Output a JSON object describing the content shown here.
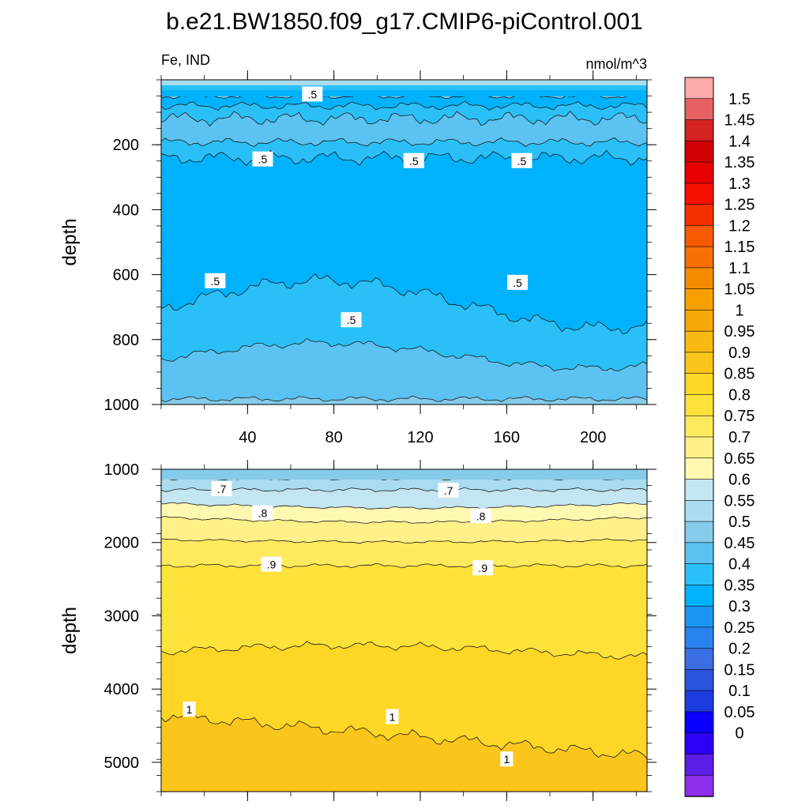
{
  "title": "b.e21.BW1850.f09_g17.CMIP6-piControl.001",
  "left_string": "Fe, IND",
  "right_string": "nmol/m^3",
  "colors": {
    "bands": [
      "#8e2eea",
      "#5a1ee6",
      "#2d00f5",
      "#0a00ff",
      "#1d3ce0",
      "#2a54dc",
      "#3a6ee2",
      "#2a82ee",
      "#1a96f2",
      "#00b2fb",
      "#2ac0f7",
      "#5cc2f1",
      "#86cbea",
      "#aadcef",
      "#c4e5f2",
      "#fff8b0",
      "#fff08a",
      "#ffea5e",
      "#fde23a",
      "#fdd626",
      "#fbc61c",
      "#f9b812",
      "#f7a80a",
      "#f7a000",
      "#f68a00",
      "#f77006",
      "#f55a00",
      "#f53000",
      "#f51000",
      "#e80000",
      "#d00000",
      "#d42222",
      "#e66262",
      "#fcaaaa"
    ]
  },
  "chart_data": [
    {
      "type": "contour",
      "panel": "upper",
      "ylabel": "depth",
      "xlim": [
        0,
        225
      ],
      "ylim": [
        1000,
        0
      ],
      "x_ticks": [
        40,
        80,
        120,
        160,
        200
      ],
      "y_ticks": [
        200,
        400,
        600,
        800,
        1000
      ],
      "contour_labels": [
        {
          "text": ".5",
          "x": 70,
          "y": 45
        },
        {
          "text": ".5",
          "x": 47,
          "y": 245
        },
        {
          "text": ".5",
          "x": 117,
          "y": 250
        },
        {
          "text": ".5",
          "x": 167,
          "y": 250
        },
        {
          "text": ".5",
          "x": 25,
          "y": 620
        },
        {
          "text": ".5",
          "x": 88,
          "y": 740
        },
        {
          "text": ".5",
          "x": 165,
          "y": 625
        }
      ]
    },
    {
      "type": "contour",
      "panel": "lower",
      "ylabel": "depth",
      "xlim": [
        0,
        225
      ],
      "ylim": [
        5400,
        1000
      ],
      "y_ticks": [
        1000,
        2000,
        3000,
        4000,
        5000
      ],
      "contour_labels": [
        {
          "text": ".7",
          "x": 28,
          "y": 1270
        },
        {
          "text": ".7",
          "x": 133,
          "y": 1290
        },
        {
          "text": ".8",
          "x": 47,
          "y": 1600
        },
        {
          "text": ".8",
          "x": 148,
          "y": 1640
        },
        {
          "text": ".9",
          "x": 51,
          "y": 2300
        },
        {
          "text": ".9",
          "x": 149,
          "y": 2350
        },
        {
          "text": "1",
          "x": 13,
          "y": 4280
        },
        {
          "text": "1",
          "x": 107,
          "y": 4380
        },
        {
          "text": "1",
          "x": 160,
          "y": 4960
        }
      ]
    },
    {
      "type": "colorbar",
      "labels": [
        "1.5",
        "1.45",
        "1.4",
        "1.35",
        "1.3",
        "1.25",
        "1.2",
        "1.15",
        "1.1",
        "1.05",
        "1",
        "0.95",
        "0.9",
        "0.85",
        "0.8",
        "0.75",
        "0.7",
        "0.65",
        "0.6",
        "0.55",
        "0.5",
        "0.45",
        "0.4",
        "0.35",
        "0.3",
        "0.25",
        "0.2",
        "0.15",
        "0.1",
        "0.05",
        "0"
      ]
    }
  ]
}
